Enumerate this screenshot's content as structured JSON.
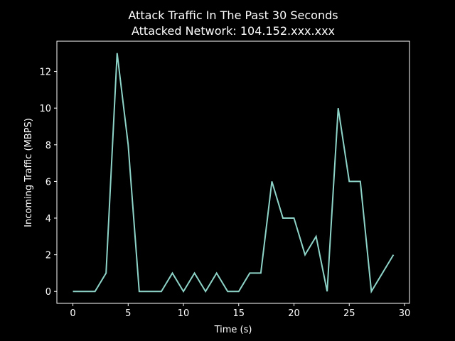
{
  "chart_data": {
    "type": "line",
    "title": "Attack Traffic In The Past 30 Seconds",
    "subtitle": "Attacked Network: 104.152.xxx.xxx",
    "x_label": "Time (s)",
    "y_label": "Incoming Traffic (MBPS)",
    "x": [
      0,
      1,
      2,
      3,
      4,
      5,
      6,
      7,
      8,
      9,
      10,
      11,
      12,
      13,
      14,
      15,
      16,
      17,
      18,
      19,
      20,
      21,
      22,
      23,
      24,
      25,
      26,
      27,
      28,
      29
    ],
    "series": [
      {
        "color": "#8dd3c7",
        "values": [
          0,
          0,
          0,
          1,
          13,
          8,
          0,
          0,
          0,
          1,
          0,
          1,
          0,
          1,
          0,
          0,
          1,
          1,
          6,
          4,
          4,
          2,
          3,
          0,
          10,
          6,
          6,
          0,
          1,
          2
        ]
      }
    ],
    "xlim": [
      -1.45,
      30.45
    ],
    "xticks": [
      0,
      5,
      10,
      15,
      20,
      25,
      30
    ],
    "ylim": [
      -0.65,
      13.65
    ],
    "yticks": [
      0,
      2,
      4,
      6,
      8,
      10,
      12
    ]
  }
}
